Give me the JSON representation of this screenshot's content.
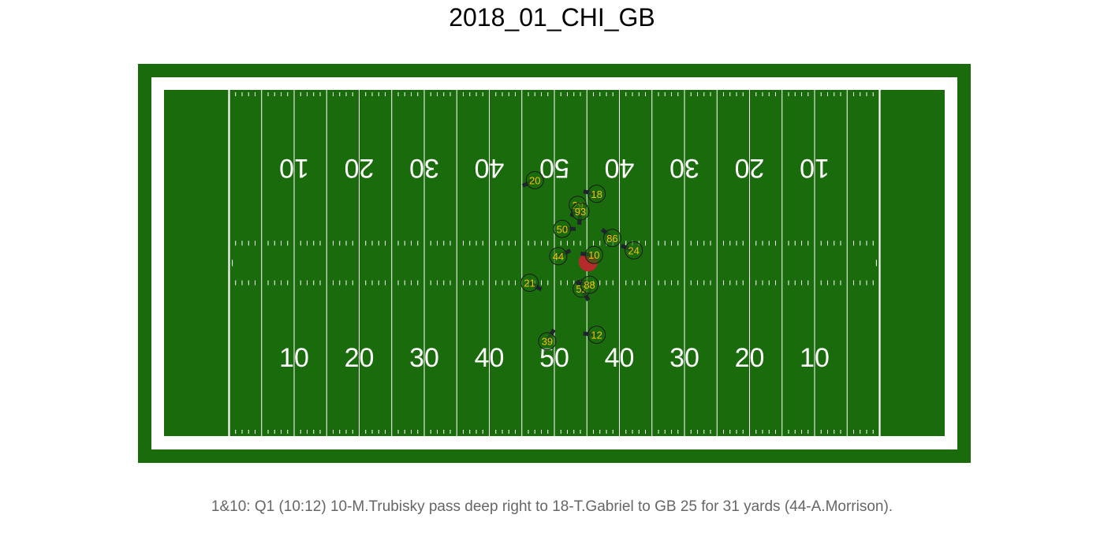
{
  "title": "2018_01_CHI_GB",
  "caption": "1&10: Q1 (10:12) 10-M.Trubisky pass deep right to 18-T.Gabriel to GB 25 for 31 yards (44-A.Morrison).",
  "colors": {
    "turf": "#1a6b0c",
    "line": "#ffffff",
    "offense_ring": "#1a1a1a",
    "label": "#f2c200",
    "football": "#b52a2a",
    "orientation": "#1f2430"
  },
  "yard_numbers": [
    {
      "label": "10",
      "yardline": 10
    },
    {
      "label": "20",
      "yardline": 20
    },
    {
      "label": "30",
      "yardline": 30
    },
    {
      "label": "40",
      "yardline": 40
    },
    {
      "label": "50",
      "yardline": 50
    },
    {
      "label": "40",
      "yardline": 60
    },
    {
      "label": "30",
      "yardline": 70
    },
    {
      "label": "20",
      "yardline": 80
    },
    {
      "label": "10",
      "yardline": 90
    }
  ],
  "chart_data": {
    "type": "scatter",
    "title": "2018_01_CHI_GB",
    "units": "yards (field x 0-120 incl. end zones, y 0-53.3)",
    "football": {
      "x": 65.2,
      "y": 26.8
    },
    "players": [
      {
        "jersey": "20",
        "x": 57.0,
        "y": 39.4,
        "dir_deg": 205
      },
      {
        "jersey": "29",
        "x": 63.6,
        "y": 35.6,
        "dir_deg": 240
      },
      {
        "jersey": "18",
        "x": 66.5,
        "y": 37.3,
        "dir_deg": 170
      },
      {
        "jersey": "93",
        "x": 64.0,
        "y": 34.6,
        "dir_deg": 265
      },
      {
        "jersey": "50",
        "x": 61.2,
        "y": 31.9,
        "dir_deg": 0
      },
      {
        "jersey": "86",
        "x": 68.9,
        "y": 30.5,
        "dir_deg": 140
      },
      {
        "jersey": "24",
        "x": 72.2,
        "y": 28.6,
        "dir_deg": 160
      },
      {
        "jersey": "10",
        "x": 66.1,
        "y": 27.9,
        "dir_deg": 175
      },
      {
        "jersey": "44",
        "x": 60.6,
        "y": 27.7,
        "dir_deg": 25
      },
      {
        "jersey": "21",
        "x": 56.2,
        "y": 23.6,
        "dir_deg": 330
      },
      {
        "jersey": "52",
        "x": 64.2,
        "y": 22.7,
        "dir_deg": 300
      },
      {
        "jersey": "88",
        "x": 65.4,
        "y": 23.3,
        "dir_deg": 170
      },
      {
        "jersey": "39",
        "x": 58.9,
        "y": 14.6,
        "dir_deg": 60
      },
      {
        "jersey": "12",
        "x": 66.5,
        "y": 15.6,
        "dir_deg": 175
      }
    ]
  }
}
